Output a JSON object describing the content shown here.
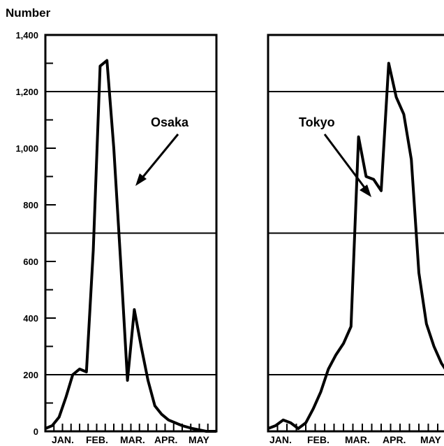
{
  "chart_data": [
    {
      "type": "line",
      "ylabel": "Number",
      "ylim": [
        0,
        1400
      ],
      "yticks": [
        0,
        200,
        400,
        600,
        800,
        1000,
        1200,
        1400
      ],
      "ytick_labels": [
        "0",
        "200",
        "400",
        "600",
        "800",
        "1,000",
        "1,200",
        "1,400"
      ],
      "xticklabels": [
        "JAN.",
        "FEB.",
        "MAR.",
        "APR.",
        "MAY"
      ],
      "grid": "horizontal lines at 200, 700 and 1200",
      "annotation": "Osaka",
      "series": [
        {
          "name": "Osaka",
          "x": [
            0.0,
            0.2,
            0.4,
            0.6,
            0.8,
            1.0,
            1.2,
            1.4,
            1.6,
            1.8,
            2.0,
            2.2,
            2.4,
            2.6,
            2.8,
            3.0,
            3.2,
            3.4,
            3.6,
            3.8,
            4.0,
            4.3,
            4.5,
            4.7,
            5.0
          ],
          "y": [
            10,
            20,
            50,
            120,
            200,
            220,
            210,
            640,
            1290,
            1310,
            1000,
            600,
            180,
            430,
            300,
            180,
            90,
            60,
            40,
            30,
            20,
            10,
            5,
            0,
            0
          ]
        }
      ]
    },
    {
      "type": "line",
      "xticklabels": [
        "JAN.",
        "FEB.",
        "MAR.",
        "APR.",
        "MAY"
      ],
      "grid": "horizontal lines at 200, 700 and 1200",
      "annotation": "Tokyo",
      "series": [
        {
          "name": "Tokyo",
          "x": [
            0.0,
            0.2,
            0.4,
            0.6,
            0.8,
            1.0,
            1.2,
            1.4,
            1.6,
            1.8,
            2.0,
            2.2,
            2.4,
            2.6,
            2.8,
            3.0,
            3.2,
            3.4,
            3.6,
            3.8,
            4.0,
            4.2,
            4.4,
            4.6,
            4.8
          ],
          "y": [
            10,
            20,
            40,
            30,
            10,
            30,
            80,
            140,
            220,
            270,
            310,
            370,
            1040,
            900,
            890,
            850,
            1300,
            1180,
            1120,
            960,
            560,
            380,
            300,
            240,
            200
          ]
        }
      ]
    }
  ]
}
